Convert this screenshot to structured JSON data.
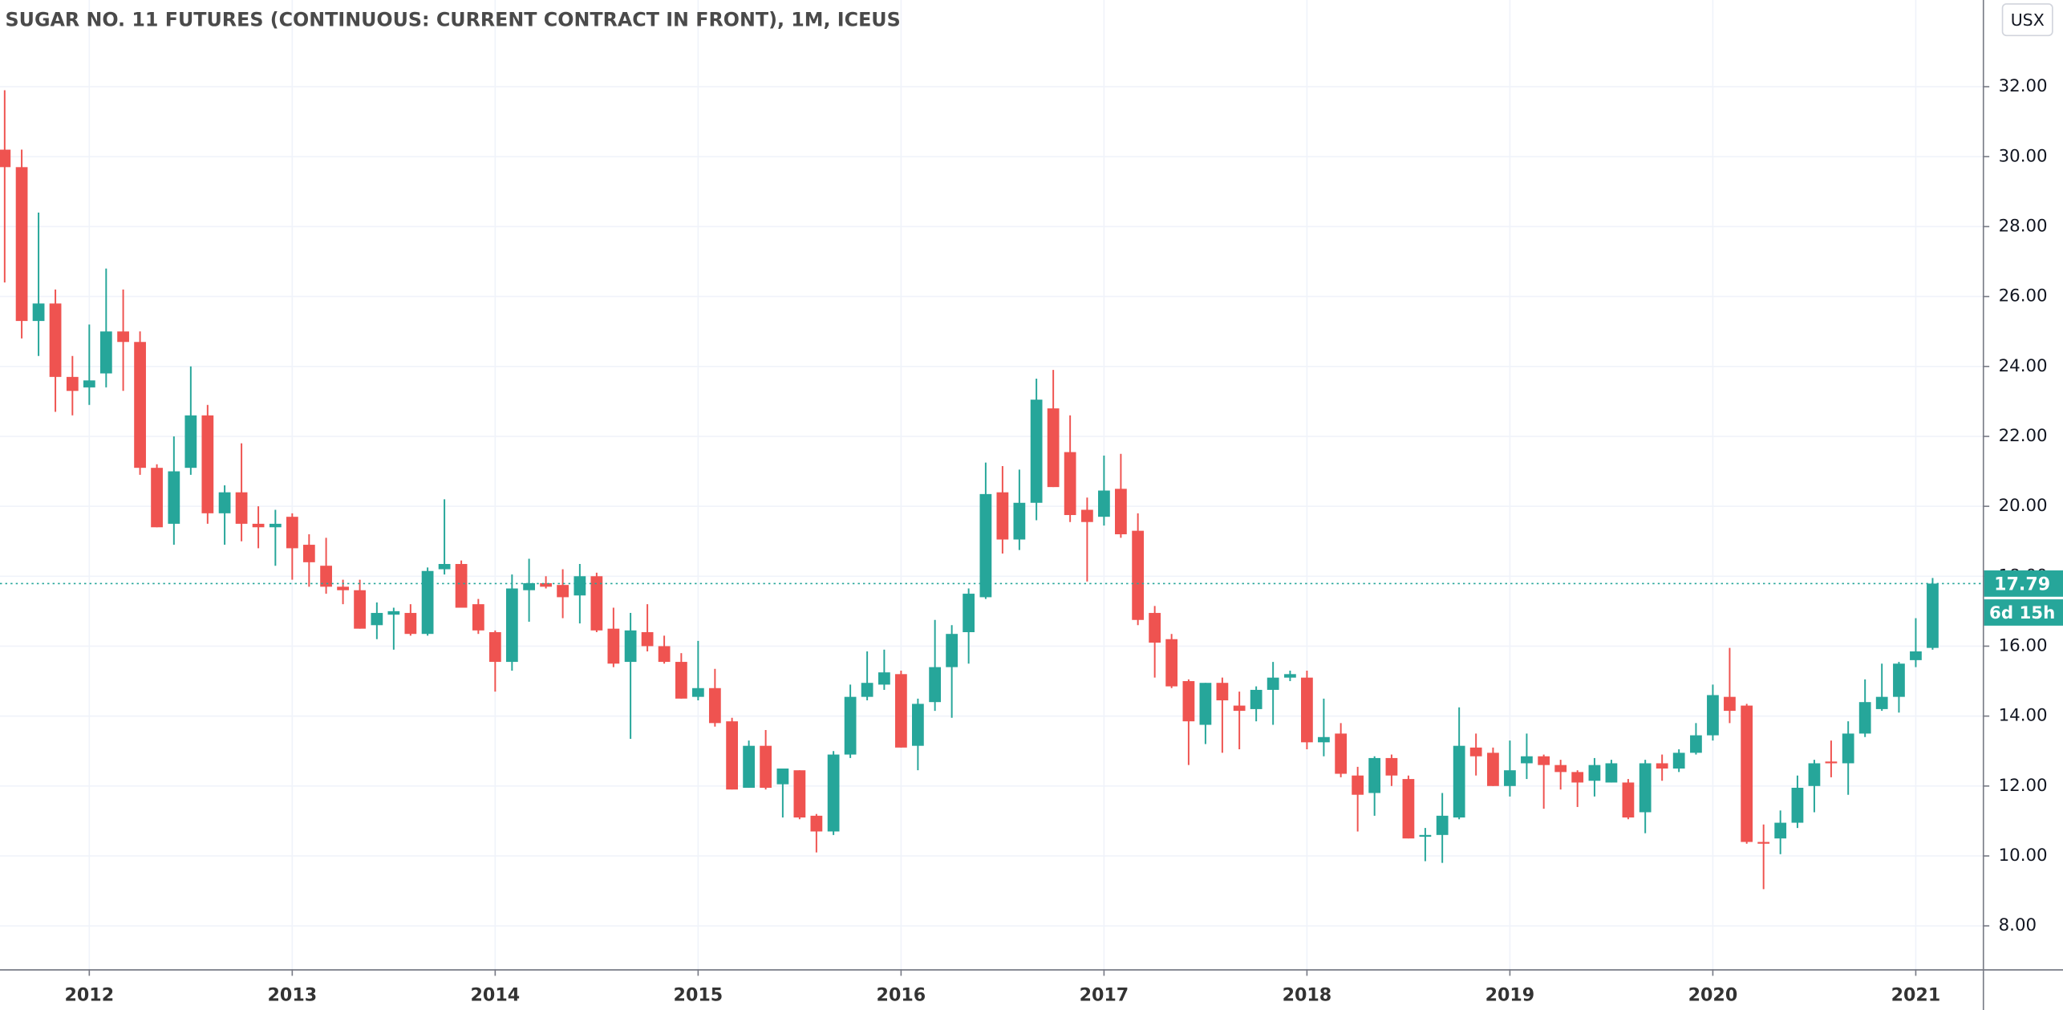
{
  "chart_data": {
    "type": "candlestick",
    "title": "SUGAR NO. 11 FUTURES (CONTINUOUS: CURRENT CONTRACT IN FRONT), 1M, ICEUS",
    "currency": "USX",
    "last_price": 17.79,
    "countdown": "6d 15h",
    "up_color": "#26a69a",
    "down_color": "#ef5350",
    "grid": true,
    "x": [
      2011.583,
      2011.667,
      2011.75,
      2011.833,
      2011.917,
      2012,
      2012.083,
      2012.167,
      2012.25,
      2012.333,
      2012.417,
      2012.5,
      2012.583,
      2012.667,
      2012.75,
      2012.833,
      2012.917,
      2013,
      2013.083,
      2013.167,
      2013.25,
      2013.333,
      2013.417,
      2013.5,
      2013.583,
      2013.667,
      2013.75,
      2013.833,
      2013.917,
      2014,
      2014.083,
      2014.167,
      2014.25,
      2014.333,
      2014.417,
      2014.5,
      2014.583,
      2014.667,
      2014.75,
      2014.833,
      2014.917,
      2015,
      2015.083,
      2015.167,
      2015.25,
      2015.333,
      2015.417,
      2015.5,
      2015.583,
      2015.667,
      2015.75,
      2015.833,
      2015.917,
      2016,
      2016.083,
      2016.167,
      2016.25,
      2016.333,
      2016.417,
      2016.5,
      2016.583,
      2016.667,
      2016.75,
      2016.833,
      2016.917,
      2017,
      2017.083,
      2017.167,
      2017.25,
      2017.333,
      2017.417,
      2017.5,
      2017.583,
      2017.667,
      2017.75,
      2017.833,
      2017.917,
      2018,
      2018.083,
      2018.167,
      2018.25,
      2018.333,
      2018.417,
      2018.5,
      2018.583,
      2018.667,
      2018.75,
      2018.833,
      2018.917,
      2019,
      2019.083,
      2019.167,
      2019.25,
      2019.333,
      2019.417,
      2019.5,
      2019.583,
      2019.667,
      2019.75,
      2019.833,
      2019.917,
      2020,
      2020.083,
      2020.167,
      2020.25,
      2020.333,
      2020.417,
      2020.5,
      2020.583,
      2020.667,
      2020.75,
      2020.833,
      2020.917,
      2021,
      2021.083
    ],
    "open": [
      30.2,
      29.7,
      25.3,
      25.8,
      23.7,
      23.4,
      23.8,
      25.0,
      24.7,
      21.1,
      19.5,
      21.1,
      22.6,
      19.8,
      20.4,
      19.5,
      19.4,
      19.7,
      18.9,
      18.3,
      17.7,
      17.6,
      16.6,
      16.9,
      16.95,
      16.35,
      18.2,
      18.35,
      17.2,
      16.4,
      15.55,
      17.6,
      17.8,
      17.75,
      17.45,
      18.0,
      16.5,
      15.55,
      16.4,
      16.0,
      15.55,
      14.55,
      14.8,
      13.85,
      11.95,
      13.15,
      12.05,
      12.45,
      11.15,
      10.7,
      12.9,
      14.55,
      14.9,
      15.2,
      13.15,
      14.4,
      15.4,
      16.4,
      17.4,
      20.4,
      19.05,
      20.1,
      22.8,
      21.55,
      19.9,
      19.7,
      20.5,
      19.3,
      16.95,
      16.2,
      15.0,
      13.75,
      14.95,
      14.3,
      14.2,
      14.75,
      15.1,
      15.1,
      13.25,
      13.5,
      12.3,
      11.8,
      12.8,
      12.2,
      10.55,
      10.6,
      11.1,
      13.1,
      12.95,
      12.0,
      12.65,
      12.85,
      12.6,
      12.4,
      12.15,
      12.1,
      12.1,
      11.25,
      12.65,
      12.5,
      12.95,
      13.45,
      14.55,
      14.3,
      10.4,
      10.5,
      10.95,
      12.0,
      12.7,
      12.65,
      13.5,
      14.2,
      14.55,
      15.6,
      15.95
    ],
    "high": [
      31.9,
      30.2,
      28.4,
      26.2,
      24.3,
      25.2,
      26.8,
      26.2,
      25.0,
      21.2,
      22.0,
      24.0,
      22.9,
      20.6,
      21.8,
      20.0,
      19.9,
      19.8,
      19.2,
      19.1,
      17.9,
      17.9,
      17.25,
      17.1,
      17.2,
      18.25,
      20.2,
      18.45,
      17.35,
      16.45,
      18.05,
      18.5,
      18.0,
      18.2,
      18.35,
      18.1,
      17.1,
      16.95,
      17.2,
      16.3,
      15.8,
      16.15,
      15.35,
      13.95,
      13.3,
      13.6,
      12.5,
      12.45,
      11.2,
      13.0,
      14.9,
      15.85,
      15.9,
      15.3,
      14.5,
      16.75,
      16.6,
      17.65,
      21.25,
      21.15,
      21.05,
      23.65,
      23.9,
      22.6,
      20.25,
      21.45,
      21.5,
      19.8,
      17.15,
      16.35,
      15.05,
      14.95,
      15.1,
      14.7,
      14.85,
      15.55,
      15.3,
      15.3,
      14.5,
      13.8,
      12.55,
      12.85,
      12.9,
      12.3,
      10.8,
      11.8,
      14.25,
      13.5,
      13.1,
      13.3,
      13.5,
      12.9,
      12.75,
      12.45,
      12.8,
      12.75,
      12.2,
      12.75,
      12.9,
      13.05,
      13.8,
      14.9,
      15.95,
      14.35,
      10.9,
      11.3,
      12.3,
      12.75,
      13.3,
      13.85,
      15.05,
      15.5,
      15.55,
      16.8,
      17.95
    ],
    "low": [
      26.4,
      24.8,
      24.3,
      22.7,
      22.6,
      22.9,
      23.4,
      23.3,
      20.9,
      19.4,
      18.9,
      20.9,
      19.5,
      18.9,
      19.0,
      18.8,
      18.3,
      17.9,
      17.7,
      17.5,
      17.2,
      16.5,
      16.2,
      15.9,
      16.3,
      16.3,
      18.05,
      17.1,
      16.35,
      14.7,
      15.3,
      16.7,
      17.65,
      16.8,
      16.65,
      16.4,
      15.4,
      13.35,
      15.85,
      15.5,
      14.5,
      14.45,
      13.7,
      11.9,
      11.95,
      11.9,
      11.1,
      11.05,
      10.1,
      10.6,
      12.8,
      14.45,
      14.75,
      13.1,
      12.45,
      14.15,
      13.95,
      15.5,
      17.35,
      18.65,
      18.75,
      19.6,
      20.55,
      19.55,
      17.85,
      19.45,
      19.1,
      16.6,
      15.1,
      14.8,
      12.6,
      13.2,
      12.95,
      13.05,
      13.85,
      13.75,
      15.0,
      13.05,
      12.85,
      12.25,
      10.7,
      11.15,
      12.0,
      10.5,
      9.85,
      9.8,
      11.05,
      12.3,
      12.0,
      11.7,
      12.2,
      11.35,
      11.9,
      11.4,
      11.7,
      12.1,
      11.05,
      10.65,
      12.15,
      12.4,
      12.9,
      13.3,
      13.8,
      10.35,
      9.05,
      10.05,
      10.8,
      11.25,
      12.25,
      11.75,
      13.4,
      14.15,
      14.1,
      15.4,
      15.9
    ],
    "close": [
      29.7,
      25.3,
      25.8,
      23.7,
      23.3,
      23.6,
      25.0,
      24.7,
      21.1,
      19.4,
      21.0,
      22.6,
      19.8,
      20.4,
      19.5,
      19.4,
      19.5,
      18.8,
      18.4,
      17.7,
      17.6,
      16.5,
      16.95,
      17.0,
      16.35,
      18.15,
      18.35,
      17.1,
      16.45,
      15.55,
      17.65,
      17.8,
      17.7,
      17.4,
      18.0,
      16.45,
      15.5,
      16.45,
      16.0,
      15.55,
      14.5,
      14.8,
      13.8,
      11.9,
      13.15,
      11.95,
      12.5,
      11.1,
      10.7,
      12.9,
      14.55,
      14.95,
      15.25,
      13.1,
      14.35,
      15.4,
      16.35,
      17.5,
      20.35,
      19.05,
      20.1,
      23.05,
      20.55,
      19.75,
      19.55,
      20.45,
      19.2,
      16.75,
      16.1,
      14.85,
      13.85,
      14.95,
      14.45,
      14.15,
      14.75,
      15.1,
      15.2,
      13.25,
      13.4,
      12.35,
      11.75,
      12.8,
      12.3,
      10.5,
      10.6,
      11.15,
      13.15,
      12.85,
      12.0,
      12.45,
      12.85,
      12.6,
      12.4,
      12.1,
      12.6,
      12.65,
      11.1,
      12.65,
      12.5,
      12.95,
      13.45,
      14.6,
      14.15,
      10.4,
      10.35,
      10.95,
      11.95,
      12.65,
      12.65,
      13.5,
      14.4,
      14.55,
      15.5,
      15.85,
      17.79
    ],
    "xlim": [
      2011.56,
      2021.33
    ],
    "xticks": [
      2012,
      2013,
      2014,
      2015,
      2016,
      2017,
      2018,
      2019,
      2020,
      2021
    ],
    "ylim": [
      6.76,
      34.48
    ],
    "yticks": [
      {
        "value": 8,
        "label": "8.00"
      },
      {
        "value": 10,
        "label": "10.00"
      },
      {
        "value": 12,
        "label": "12.00"
      },
      {
        "value": 14,
        "label": "14.00"
      },
      {
        "value": 16,
        "label": "16.00"
      },
      {
        "value": 18,
        "label": "18.00"
      },
      {
        "value": 20,
        "label": "20.00"
      },
      {
        "value": 22,
        "label": "22.00"
      },
      {
        "value": 24,
        "label": "24.00"
      },
      {
        "value": 26,
        "label": "26.00"
      },
      {
        "value": 28,
        "label": "28.00"
      },
      {
        "value": 30,
        "label": "30.00"
      },
      {
        "value": 32,
        "label": "32.00"
      }
    ]
  }
}
